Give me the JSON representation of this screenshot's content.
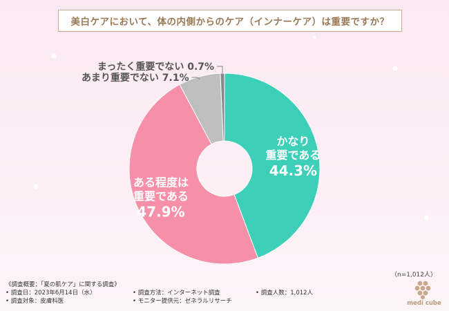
{
  "title": "美白ケアにおいて、体の内側からのケア（インナーケア）は重要ですか？",
  "chart_data": {
    "type": "pie",
    "title": "美白ケアにおいて、体の内側からのケア（インナーケア）は重要ですか？",
    "slices": [
      {
        "name_lines": [
          "かなり",
          "重要である"
        ],
        "value": 44.3,
        "color": "#3ecfb8",
        "label_color": "#ffffff",
        "label_pos": "inside"
      },
      {
        "name_lines": [
          "ある程度は",
          "重要である"
        ],
        "value": 47.9,
        "color": "#f590a8",
        "label_color": "#ffffff",
        "label_pos": "inside"
      },
      {
        "name_lines": [
          "あまり重要でない"
        ],
        "value": 7.1,
        "color": "#bfbfbf",
        "label_color": "#555555",
        "label_pos": "outside"
      },
      {
        "name_lines": [
          "まったく重要でない"
        ],
        "value": 0.7,
        "color": "#8a8a8a",
        "label_color": "#555555",
        "label_pos": "outside"
      }
    ],
    "unit": "%"
  },
  "sample_size": "（n=1,012人）",
  "footer": {
    "heading": "《調査概要：「夏の肌ケア」に関する調査》",
    "items": [
      [
        "• 調査日：2023年6月14日（水）",
        "• 調査方法：インターネット調査",
        "• 調査人数：1,012人"
      ],
      [
        "• 調査対象：皮膚科医",
        "• モニター提供元：ゼネラルリサーチ",
        ""
      ]
    ]
  },
  "brand": "medi cube",
  "colors": {
    "accent": "#c9a88a",
    "title_text": "#9a7a55"
  }
}
